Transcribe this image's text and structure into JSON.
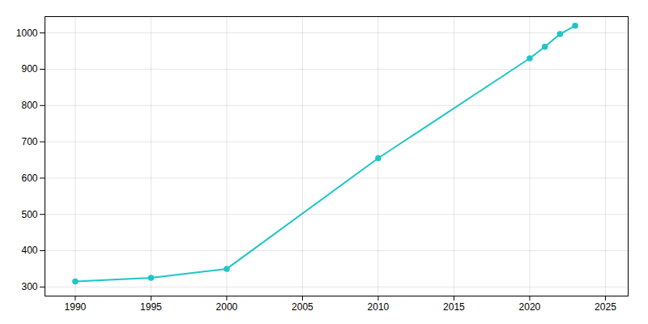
{
  "chart_data": {
    "type": "line",
    "x": [
      1990,
      1995,
      2000,
      2010,
      2020,
      2021,
      2022,
      2023
    ],
    "values": [
      315,
      325,
      350,
      655,
      930,
      962,
      997,
      1020
    ],
    "color": "#20C5C5",
    "marker": "circle",
    "xlim": [
      1988,
      2026.5
    ],
    "ylim": [
      275,
      1045
    ],
    "xticks": [
      1990,
      1995,
      2000,
      2005,
      2010,
      2015,
      2020,
      2025
    ],
    "yticks": [
      300,
      400,
      500,
      600,
      700,
      800,
      900,
      1000
    ],
    "grid": true
  }
}
